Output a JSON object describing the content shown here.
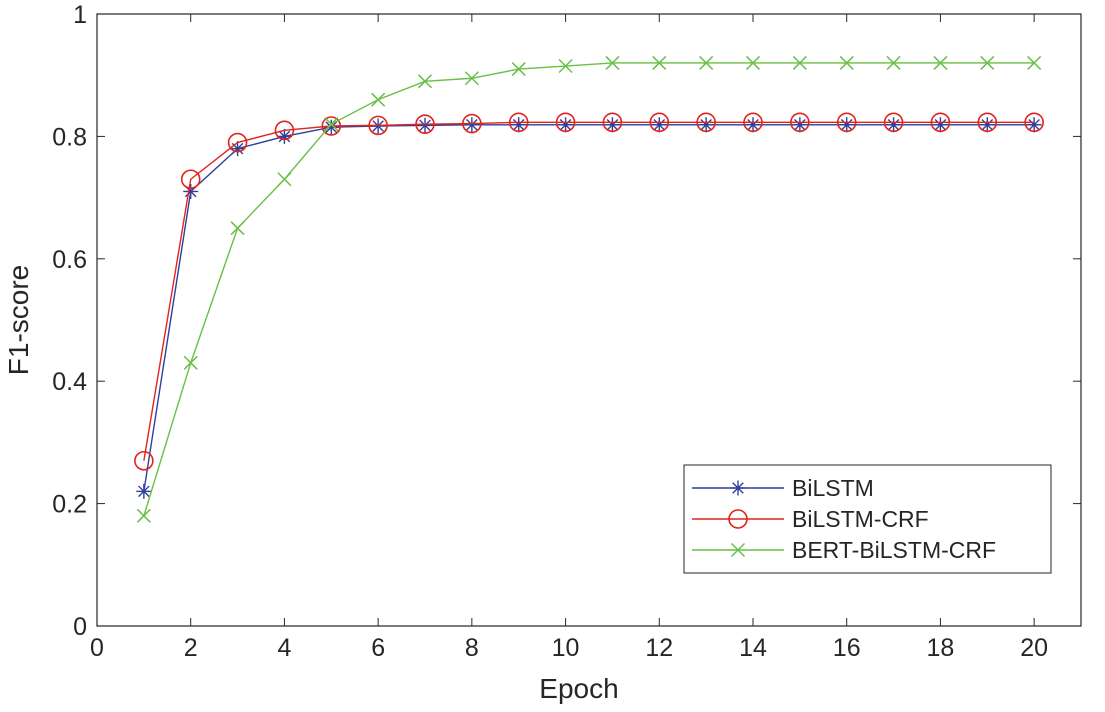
{
  "chart_data": {
    "type": "line",
    "title": "",
    "xlabel": "Epoch",
    "ylabel": "F1-score",
    "xlim": [
      0,
      21
    ],
    "ylim": [
      0,
      1
    ],
    "xticks": [
      "0",
      "2",
      "4",
      "6",
      "8",
      "10",
      "12",
      "14",
      "16",
      "18",
      "20"
    ],
    "yticks": [
      "0",
      "0.2",
      "0.4",
      "0.6",
      "0.8",
      "1"
    ],
    "grid": false,
    "legend_position": "bottom-right",
    "x": [
      1,
      2,
      3,
      4,
      5,
      6,
      7,
      8,
      9,
      10,
      11,
      12,
      13,
      14,
      15,
      16,
      17,
      18,
      19,
      20
    ],
    "series": [
      {
        "name": "BiLSTM",
        "color": "#2e3f9c",
        "marker": "asterisk",
        "values": [
          0.22,
          0.71,
          0.78,
          0.8,
          0.815,
          0.817,
          0.818,
          0.819,
          0.819,
          0.819,
          0.819,
          0.819,
          0.819,
          0.819,
          0.819,
          0.819,
          0.819,
          0.819,
          0.819,
          0.819
        ]
      },
      {
        "name": "BiLSTM-CRF",
        "color": "#e2231a",
        "marker": "circle",
        "values": [
          0.27,
          0.73,
          0.79,
          0.81,
          0.817,
          0.818,
          0.82,
          0.821,
          0.823,
          0.823,
          0.823,
          0.823,
          0.823,
          0.823,
          0.823,
          0.823,
          0.823,
          0.823,
          0.823,
          0.823
        ]
      },
      {
        "name": "BERT-BiLSTM-CRF",
        "color": "#6abf45",
        "marker": "x",
        "values": [
          0.18,
          0.43,
          0.65,
          0.73,
          0.82,
          0.86,
          0.89,
          0.895,
          0.91,
          0.915,
          0.92,
          0.92,
          0.92,
          0.92,
          0.92,
          0.92,
          0.92,
          0.92,
          0.92,
          0.92
        ]
      }
    ]
  }
}
